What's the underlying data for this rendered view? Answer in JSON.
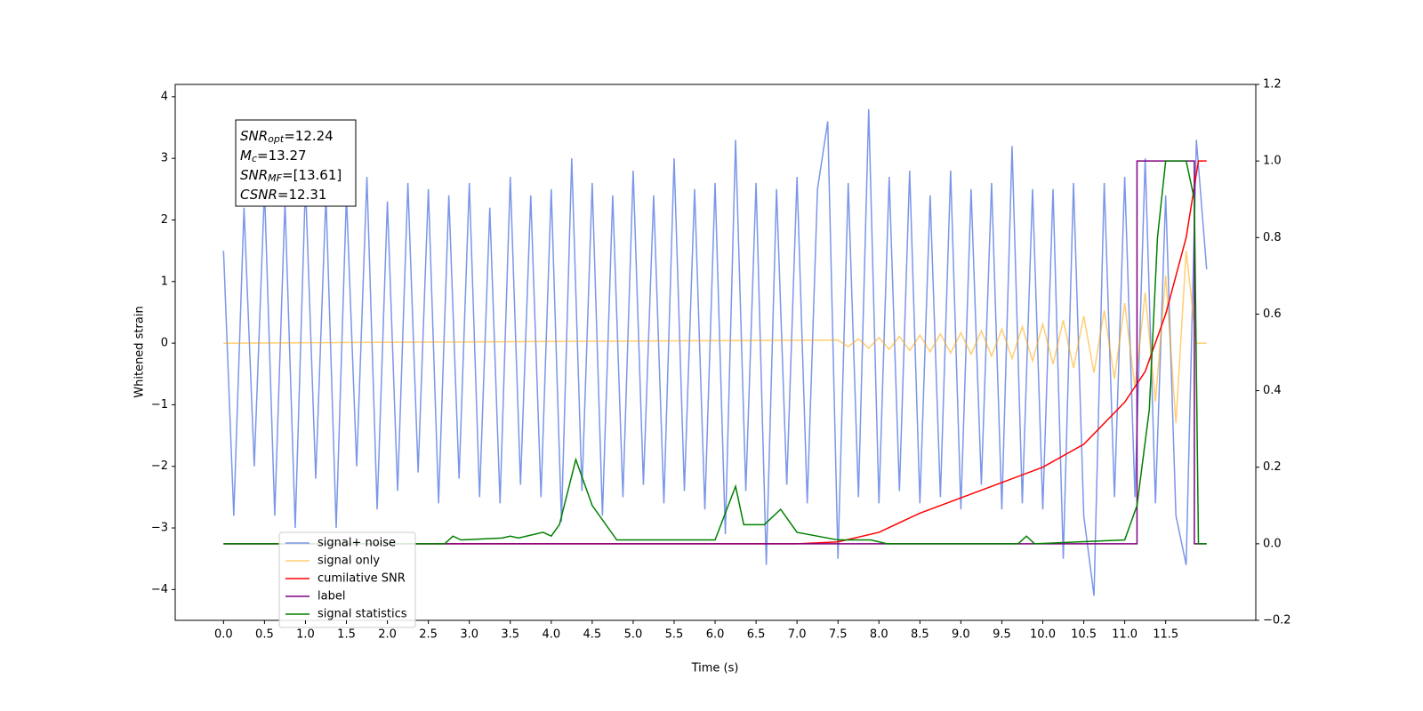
{
  "chart_data": {
    "type": "line",
    "xlabel": "Time (s)",
    "ylabel": "Whitened strain",
    "xlim": [
      -0.59,
      12.6
    ],
    "ylim": [
      -4.5,
      4.2
    ],
    "y2lim": [
      -0.2,
      1.2
    ],
    "xticks": [
      {
        "value": 0,
        "label": "0.0"
      },
      0.5,
      {
        "value": 1,
        "label": "1.0"
      },
      1.5,
      {
        "value": 2,
        "label": "2.0"
      },
      2.5,
      {
        "value": 3,
        "label": "3.0"
      },
      3.5,
      {
        "value": 4,
        "label": "4.0"
      },
      4.5,
      {
        "value": 5,
        "label": "5.0"
      },
      5.5,
      {
        "value": 6,
        "label": "6.0"
      },
      6.5,
      {
        "value": 7,
        "label": "7.0"
      },
      7.5,
      {
        "value": 8,
        "label": "8.0"
      },
      8.5,
      {
        "value": 9,
        "label": "9.0"
      },
      9.5,
      {
        "value": 10,
        "label": "10.0"
      },
      10.5,
      {
        "value": 11,
        "label": "11.0"
      },
      11.5
    ],
    "yticks": [
      {
        "value": -4,
        "label": "−4"
      },
      {
        "value": -3,
        "label": "−3"
      },
      {
        "value": -2,
        "label": "−2"
      },
      {
        "value": -1,
        "label": "−1"
      },
      0,
      1,
      2,
      3,
      4
    ],
    "y2ticks": [
      {
        "value": -0.2,
        "label": "−0.2"
      },
      {
        "value": 0,
        "label": "0.0"
      },
      0.2,
      0.4,
      0.6,
      0.8,
      {
        "value": 1,
        "label": "1.0"
      },
      1.2
    ],
    "legend": "lower left",
    "annotation": [
      {
        "main": "SNR",
        "sub": "opt",
        "rest": "=12.24"
      },
      {
        "main": "M",
        "sub": "c",
        "rest": "=13.27"
      },
      {
        "main": "SNR",
        "sub": "MF",
        "rest": "=[13.61]"
      },
      {
        "main": "CSNR",
        "sub": "",
        "rest": "=12.31"
      }
    ],
    "series": [
      {
        "name": "signal+ noise",
        "color": "#7b96e8",
        "axis": "y",
        "x": [
          0,
          0.125,
          0.25,
          0.375,
          0.5,
          0.625,
          0.75,
          0.875,
          1,
          1.125,
          1.25,
          1.375,
          1.5,
          1.625,
          1.75,
          1.875,
          2,
          2.125,
          2.25,
          2.375,
          2.5,
          2.625,
          2.75,
          2.875,
          3,
          3.125,
          3.25,
          3.375,
          3.5,
          3.625,
          3.75,
          3.875,
          4,
          4.125,
          4.25,
          4.375,
          4.5,
          4.625,
          4.75,
          4.875,
          5,
          5.125,
          5.25,
          5.375,
          5.5,
          5.625,
          5.75,
          5.875,
          6,
          6.125,
          6.25,
          6.375,
          6.5,
          6.625,
          6.75,
          6.875,
          7,
          7.125,
          7.25,
          7.375,
          7.5,
          7.625,
          7.75,
          7.875,
          8,
          8.125,
          8.25,
          8.375,
          8.5,
          8.625,
          8.75,
          8.875,
          9,
          9.125,
          9.25,
          9.375,
          9.5,
          9.625,
          9.75,
          9.875,
          10,
          10.125,
          10.25,
          10.375,
          10.5,
          10.625,
          10.75,
          10.875,
          11,
          11.125,
          11.25,
          11.375,
          11.5,
          11.625,
          11.75,
          11.875,
          12
        ],
        "values": [
          1.5,
          -2.8,
          2.2,
          -2,
          2.5,
          -2.8,
          2.3,
          -3,
          2.6,
          -2.2,
          2.4,
          -3,
          2.4,
          -2,
          2.7,
          -2.7,
          2.3,
          -2.4,
          2.6,
          -2.1,
          2.5,
          -2.6,
          2.4,
          -2.2,
          2.6,
          -2.5,
          2.2,
          -2.6,
          2.7,
          -2.3,
          2.4,
          -2.5,
          2.5,
          -2.9,
          3,
          -2.4,
          2.6,
          -2.8,
          2.4,
          -2.5,
          2.8,
          -2.3,
          2.4,
          -2.6,
          3,
          -2.4,
          2.5,
          -2.7,
          2.6,
          -3.1,
          3.3,
          -2.4,
          2.6,
          -3.6,
          2.5,
          -2.3,
          2.7,
          -2.6,
          2.5,
          3.6,
          -3.5,
          2.6,
          -2.5,
          3.8,
          -2.6,
          2.7,
          -2.4,
          2.8,
          -2.6,
          2.4,
          -2.5,
          2.8,
          -2.7,
          2.5,
          -2.3,
          2.6,
          -2.7,
          3.2,
          -2.6,
          2.5,
          -2.7,
          2.5,
          -3.5,
          2.6,
          -2.8,
          -4.1,
          2.6,
          -2.5,
          2.7,
          -2.5,
          3,
          -2.6,
          2.4,
          -2.8,
          -3.6,
          3.3,
          1.2
        ]
      },
      {
        "name": "signal only",
        "color": "#ffa500",
        "axis": "y",
        "x": [
          0,
          7.5,
          7.625,
          7.75,
          7.875,
          8,
          8.125,
          8.25,
          8.375,
          8.5,
          8.625,
          8.75,
          8.875,
          9,
          9.125,
          9.25,
          9.375,
          9.5,
          9.625,
          9.75,
          9.875,
          10,
          10.125,
          10.25,
          10.375,
          10.5,
          10.625,
          10.75,
          10.875,
          11,
          11.125,
          11.25,
          11.375,
          11.5,
          11.625,
          11.75,
          11.875,
          12
        ],
        "values": [
          0,
          0.05,
          -0.06,
          0.07,
          -0.08,
          0.09,
          -0.1,
          0.11,
          -0.12,
          0.13,
          -0.14,
          0.15,
          -0.16,
          0.17,
          -0.18,
          0.2,
          -0.21,
          0.23,
          -0.25,
          0.27,
          -0.29,
          0.31,
          -0.34,
          0.37,
          -0.4,
          0.44,
          -0.48,
          0.53,
          -0.58,
          0.65,
          -0.72,
          0.82,
          -0.95,
          1.1,
          -1.3,
          1.5,
          0,
          0
        ]
      },
      {
        "name": "cumilative SNR",
        "color": "#ff0000",
        "axis": "y2",
        "x": [
          0,
          7,
          7.5,
          8,
          8.5,
          9,
          9.5,
          10,
          10.5,
          11,
          11.25,
          11.5,
          11.75,
          11.9,
          12
        ],
        "values": [
          0,
          0,
          0.005,
          0.03,
          0.08,
          0.12,
          0.16,
          0.2,
          0.26,
          0.37,
          0.45,
          0.6,
          0.8,
          1,
          1
        ]
      },
      {
        "name": "label",
        "color": "#800080",
        "axis": "y2",
        "x": [
          0,
          11.15,
          11.15,
          11.85,
          11.85,
          12
        ],
        "values": [
          0,
          0,
          1,
          1,
          0,
          0
        ]
      },
      {
        "name": "signal statistics",
        "color": "#008000",
        "axis": "y2",
        "x": [
          0,
          2.7,
          2.8,
          2.9,
          3.4,
          3.5,
          3.6,
          3.9,
          4,
          4.1,
          4.3,
          4.5,
          4.8,
          6,
          6.25,
          6.35,
          6.6,
          6.8,
          7,
          7.5,
          7.9,
          8.1,
          9.7,
          9.8,
          9.9,
          11,
          11.15,
          11.3,
          11.4,
          11.5,
          11.75,
          11.85,
          11.9,
          12
        ],
        "values": [
          0,
          0,
          0.02,
          0.01,
          0.015,
          0.02,
          0.015,
          0.03,
          0.02,
          0.05,
          0.22,
          0.1,
          0.01,
          0.01,
          0.15,
          0.05,
          0.05,
          0.09,
          0.03,
          0.01,
          0.01,
          0,
          0,
          0.02,
          0,
          0.01,
          0.1,
          0.35,
          0.8,
          1,
          1,
          0.9,
          0,
          0
        ]
      }
    ]
  }
}
